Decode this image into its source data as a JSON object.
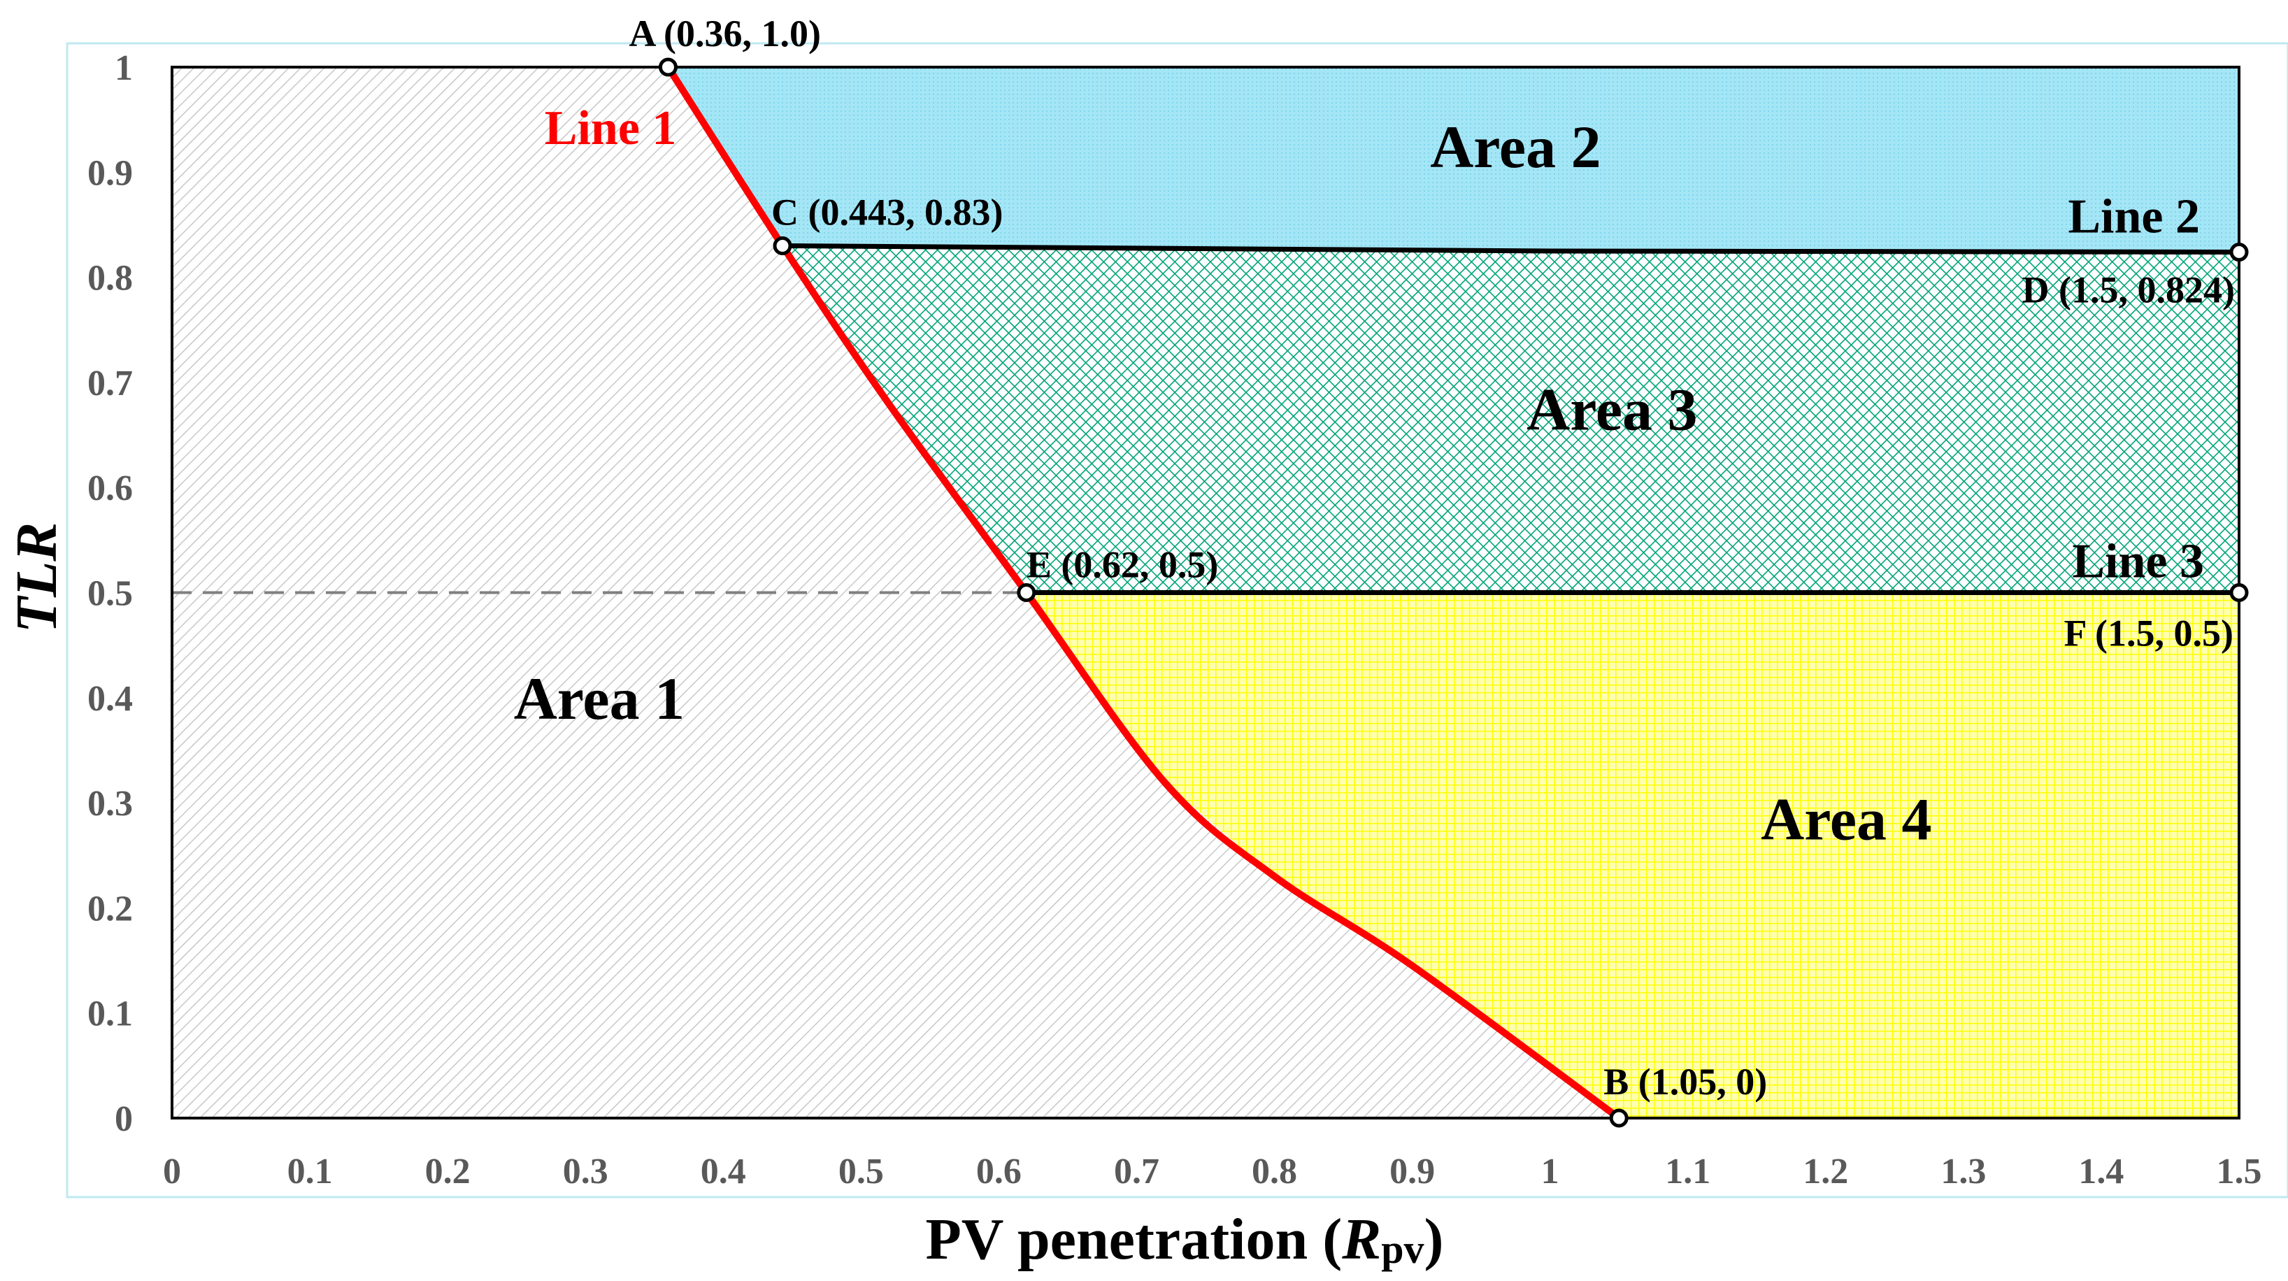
{
  "chart_data": {
    "type": "area",
    "xlabel": "PV penetration (",
    "xlabel_var": "R",
    "xlabel_sub": "pv",
    "xlabel_close": ")",
    "ylabel": "TLR",
    "xlim": [
      0,
      1.5
    ],
    "ylim": [
      0,
      1
    ],
    "grid": false,
    "x_ticks": [
      "0",
      "0.1",
      "0.2",
      "0.3",
      "0.4",
      "0.5",
      "0.6",
      "0.7",
      "0.8",
      "0.9",
      "1",
      "1.1",
      "1.2",
      "1.3",
      "1.4",
      "1.5"
    ],
    "y_ticks": [
      "0",
      "0.1",
      "0.2",
      "0.3",
      "0.4",
      "0.5",
      "0.6",
      "0.7",
      "0.8",
      "0.9",
      "1"
    ],
    "lines": [
      {
        "name": "Line 1",
        "color": "#ff0000",
        "points": [
          [
            0.36,
            1.0
          ],
          [
            0.443,
            0.83
          ],
          [
            0.52,
            0.68
          ],
          [
            0.62,
            0.5
          ],
          [
            0.72,
            0.32
          ],
          [
            0.8,
            0.23
          ],
          [
            0.9,
            0.145
          ],
          [
            1.05,
            0.0
          ]
        ]
      },
      {
        "name": "Line 2",
        "color": "#000000",
        "points": [
          [
            0.443,
            0.83
          ],
          [
            1.0,
            0.825
          ],
          [
            1.5,
            0.824
          ]
        ]
      },
      {
        "name": "Line 3",
        "color": "#000000",
        "points": [
          [
            0.62,
            0.5
          ],
          [
            1.5,
            0.5
          ]
        ]
      }
    ],
    "reference_line": {
      "y": 0.5,
      "x_from": 0,
      "x_to": 0.62,
      "style": "dashed",
      "color": "#808080"
    },
    "points": [
      {
        "label": "A (0.36, 1.0)",
        "x": 0.36,
        "y": 1.0
      },
      {
        "label": "C (0.443, 0.83)",
        "x": 0.443,
        "y": 0.83
      },
      {
        "label": "E (0.62, 0.5)",
        "x": 0.62,
        "y": 0.5
      },
      {
        "label": "B (1.05, 0)",
        "x": 1.05,
        "y": 0.0
      },
      {
        "label": "D (1.5, 0.824)",
        "x": 1.5,
        "y": 0.824
      },
      {
        "label": "F (1.5, 0.5)",
        "x": 1.5,
        "y": 0.5
      }
    ],
    "areas": [
      {
        "name": "Area 1",
        "fill": "#d9d9d9",
        "pattern": "diagonal-hatch"
      },
      {
        "name": "Area 2",
        "fill": "#9fe4f5",
        "pattern": "fine-dots"
      },
      {
        "name": "Area 3",
        "fill": "#00a478",
        "pattern": "cross-hatch"
      },
      {
        "name": "Area 4",
        "fill": "#ffff40",
        "pattern": "grid"
      }
    ],
    "area_label_positions": [
      {
        "name": "Area 1",
        "x": 0.31,
        "y": 0.38
      },
      {
        "name": "Area 2",
        "x": 0.975,
        "y": 0.905
      },
      {
        "name": "Area 3",
        "x": 1.045,
        "y": 0.655
      },
      {
        "name": "Area 4",
        "x": 1.215,
        "y": 0.265
      }
    ],
    "colors": {
      "axis": "#000000",
      "tick_label": "#595959",
      "line1_label": "#ff0000",
      "frame": "#bfe9f2"
    }
  }
}
